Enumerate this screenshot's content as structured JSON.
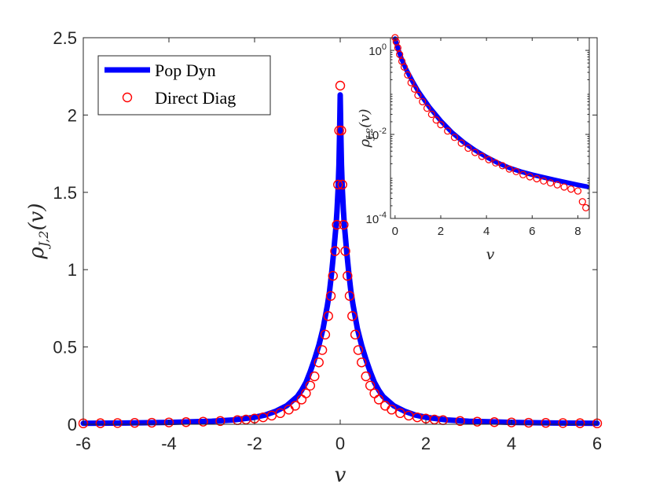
{
  "chart_data": [
    {
      "name": "main",
      "type": "line+scatter",
      "xlabel": "v",
      "ylabel_main": "ρ",
      "ylabel_sub": "J,2",
      "ylabel_arg": "(v)",
      "xlim": [
        -6,
        6
      ],
      "ylim": [
        0,
        2.5
      ],
      "xticks": [
        -6,
        -4,
        -2,
        0,
        2,
        4,
        6
      ],
      "yticks": [
        0,
        0.5,
        1,
        1.5,
        2,
        2.5
      ],
      "ytick_labels": [
        "0",
        "0.5",
        "1",
        "1.5",
        "2",
        "2.5"
      ],
      "legend": {
        "position": "top-left",
        "entries": [
          "Pop Dyn",
          "Direct Diag"
        ]
      },
      "series": [
        {
          "name": "Pop Dyn",
          "style": "thick-line",
          "color": "#0000ff",
          "x": [
            -6,
            -5,
            -4,
            -3,
            -2.5,
            -2,
            -1.75,
            -1.5,
            -1.25,
            -1,
            -0.9,
            -0.8,
            -0.7,
            -0.6,
            -0.5,
            -0.4,
            -0.3,
            -0.25,
            -0.2,
            -0.15,
            -0.1,
            -0.075,
            -0.05,
            -0.03,
            -0.015,
            0,
            0.015,
            0.03,
            0.05,
            0.075,
            0.1,
            0.15,
            0.2,
            0.25,
            0.3,
            0.4,
            0.5,
            0.6,
            0.7,
            0.8,
            0.9,
            1,
            1.25,
            1.5,
            1.75,
            2,
            2.5,
            3,
            4,
            5,
            6
          ],
          "y": [
            0.006,
            0.008,
            0.012,
            0.02,
            0.028,
            0.045,
            0.06,
            0.085,
            0.12,
            0.18,
            0.22,
            0.27,
            0.34,
            0.42,
            0.51,
            0.62,
            0.77,
            0.86,
            0.98,
            1.12,
            1.28,
            1.38,
            1.52,
            1.68,
            1.88,
            2.13,
            1.88,
            1.68,
            1.52,
            1.38,
            1.28,
            1.12,
            0.98,
            0.86,
            0.77,
            0.62,
            0.51,
            0.42,
            0.34,
            0.27,
            0.22,
            0.18,
            0.12,
            0.085,
            0.06,
            0.045,
            0.028,
            0.02,
            0.012,
            0.008,
            0.006
          ]
        },
        {
          "name": "Direct Diag",
          "style": "open-circles",
          "color": "#ff0000",
          "x": [
            -6,
            -5.6,
            -5.2,
            -4.8,
            -4.4,
            -4,
            -3.6,
            -3.2,
            -2.8,
            -2.4,
            -2.2,
            -2,
            -1.8,
            -1.6,
            -1.4,
            -1.2,
            -1.05,
            -0.9,
            -0.8,
            -0.7,
            -0.6,
            -0.5,
            -0.42,
            -0.35,
            -0.28,
            -0.22,
            -0.17,
            -0.12,
            -0.08,
            -0.05,
            -0.025,
            0,
            0.025,
            0.05,
            0.08,
            0.12,
            0.17,
            0.22,
            0.28,
            0.35,
            0.42,
            0.5,
            0.6,
            0.7,
            0.8,
            0.9,
            1.05,
            1.2,
            1.4,
            1.6,
            1.8,
            2,
            2.2,
            2.4,
            2.8,
            3.2,
            3.6,
            4,
            4.4,
            4.8,
            5.2,
            5.6,
            6
          ],
          "y": [
            0.006,
            0.007,
            0.008,
            0.009,
            0.01,
            0.012,
            0.014,
            0.017,
            0.021,
            0.027,
            0.031,
            0.037,
            0.045,
            0.056,
            0.072,
            0.095,
            0.12,
            0.16,
            0.2,
            0.25,
            0.31,
            0.4,
            0.48,
            0.58,
            0.7,
            0.83,
            0.96,
            1.12,
            1.29,
            1.55,
            1.9,
            2.19,
            1.9,
            1.55,
            1.29,
            1.12,
            0.96,
            0.83,
            0.7,
            0.58,
            0.48,
            0.4,
            0.31,
            0.25,
            0.2,
            0.16,
            0.12,
            0.095,
            0.072,
            0.056,
            0.045,
            0.037,
            0.031,
            0.027,
            0.021,
            0.017,
            0.014,
            0.012,
            0.01,
            0.009,
            0.008,
            0.007,
            0.006
          ]
        }
      ]
    },
    {
      "name": "inset",
      "type": "line+scatter",
      "yscale": "log",
      "xlabel": "v",
      "ylabel_main": "ρ",
      "ylabel_sub": "J,2",
      "ylabel_arg": "(v)",
      "xlim": [
        -0.2,
        8.5
      ],
      "ylim": [
        0.0001,
        2
      ],
      "xticks": [
        0,
        2,
        4,
        6,
        8
      ],
      "yticks": [
        0.0001,
        0.01,
        1
      ],
      "ytick_labels": [
        {
          "base": "10",
          "exp": "-4"
        },
        {
          "base": "10",
          "exp": "-2"
        },
        {
          "base": "10",
          "exp": "0"
        }
      ],
      "series": [
        {
          "name": "Pop Dyn",
          "style": "thick-line",
          "color": "#0000ff",
          "x": [
            0,
            0.1,
            0.2,
            0.3,
            0.5,
            0.75,
            1,
            1.25,
            1.5,
            2,
            2.5,
            3,
            3.5,
            4,
            4.5,
            5,
            5.5,
            6,
            6.5,
            7,
            7.5,
            8,
            8.4
          ],
          "y": [
            1.9,
            1.25,
            0.85,
            0.6,
            0.34,
            0.19,
            0.11,
            0.07,
            0.045,
            0.021,
            0.011,
            0.0065,
            0.0042,
            0.0029,
            0.0021,
            0.0016,
            0.0013,
            0.0011,
            0.00095,
            0.00082,
            0.00072,
            0.00063,
            0.00057
          ]
        },
        {
          "name": "Direct Diag",
          "style": "open-circles",
          "color": "#ff0000",
          "x": [
            0,
            0.05,
            0.12,
            0.2,
            0.3,
            0.4,
            0.55,
            0.7,
            0.85,
            1,
            1.2,
            1.4,
            1.6,
            1.8,
            2,
            2.3,
            2.6,
            2.9,
            3.2,
            3.5,
            3.8,
            4.1,
            4.4,
            4.7,
            5,
            5.3,
            5.6,
            5.9,
            6.2,
            6.5,
            6.8,
            7.1,
            7.4,
            7.7,
            8,
            8.2,
            8.35
          ],
          "y": [
            2.0,
            1.6,
            1.15,
            0.8,
            0.55,
            0.4,
            0.26,
            0.17,
            0.12,
            0.085,
            0.06,
            0.042,
            0.03,
            0.022,
            0.017,
            0.012,
            0.0085,
            0.0062,
            0.0047,
            0.0037,
            0.003,
            0.0025,
            0.0021,
            0.0018,
            0.0015,
            0.0013,
            0.0011,
            0.00098,
            0.00088,
            0.00078,
            0.0007,
            0.00063,
            0.00056,
            0.0005,
            0.00045,
            0.00025,
            0.00018
          ]
        }
      ]
    }
  ]
}
